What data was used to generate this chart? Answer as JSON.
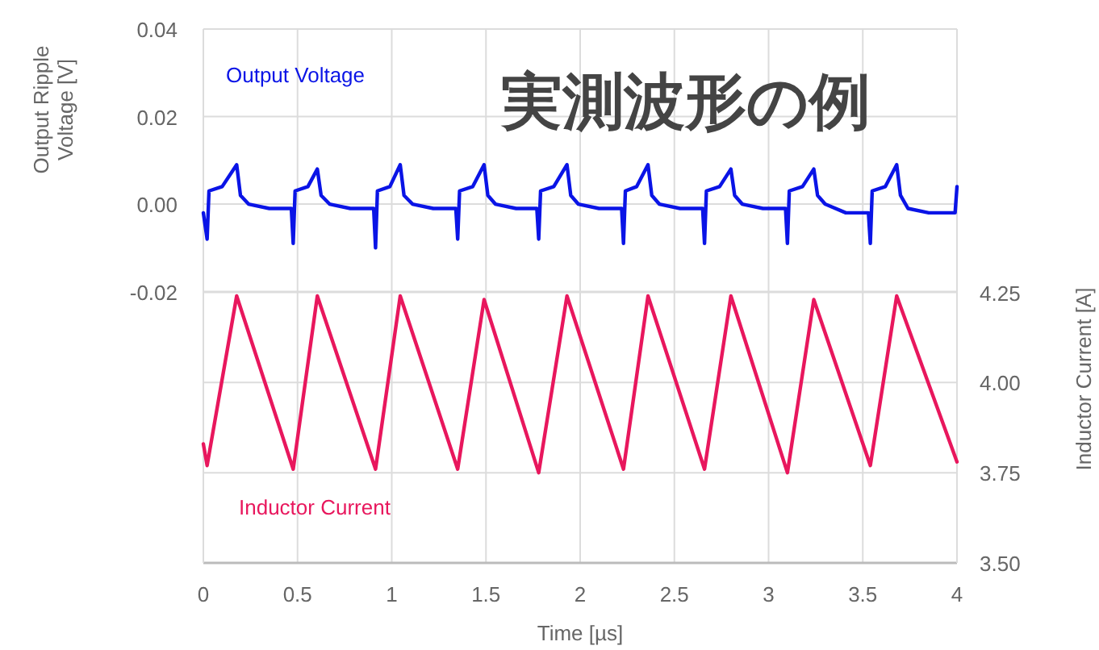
{
  "chart_data": {
    "type": "line",
    "title": "実測波形の例",
    "xlabel": "Time [µs]",
    "ylabel": "Output Ripple Voltage [V]",
    "y2label": "Inductor Current [A]",
    "xlim": [
      0,
      4
    ],
    "xticks": [
      0,
      0.5,
      1,
      1.5,
      2,
      2.5,
      3,
      3.5,
      4
    ],
    "ylim": [
      -0.082,
      0.04
    ],
    "yticks": [
      0.04,
      0.02,
      {
        "value": 0,
        "label": "0.00"
      },
      -0.02
    ],
    "y2lim": [
      3.5,
      4.98
    ],
    "y2ticks": [
      4.25,
      {
        "value": 4,
        "label": "4.00"
      },
      3.75,
      {
        "value": 3.5,
        "label": "3.50"
      }
    ],
    "grid": true,
    "series": [
      {
        "name": "Output Voltage",
        "color": "#0a14e6",
        "x": [
          0,
          0.02,
          0.03,
          0.1,
          0.177,
          0.197,
          0.24,
          0.35,
          0.467,
          0.477,
          0.487,
          0.555,
          0.605,
          0.625,
          0.67,
          0.78,
          0.904,
          0.914,
          0.924,
          0.99,
          1.045,
          1.065,
          1.11,
          1.22,
          1.34,
          1.35,
          1.36,
          1.43,
          1.49,
          1.51,
          1.55,
          1.66,
          1.77,
          1.78,
          1.79,
          1.86,
          1.93,
          1.95,
          1.99,
          2.1,
          2.22,
          2.23,
          2.24,
          2.3,
          2.36,
          2.38,
          2.42,
          2.53,
          2.65,
          2.66,
          2.67,
          2.74,
          2.8,
          2.82,
          2.86,
          2.97,
          3.09,
          3.1,
          3.11,
          3.18,
          3.24,
          3.26,
          3.3,
          3.41,
          3.53,
          3.54,
          3.55,
          3.62,
          3.68,
          3.7,
          3.74,
          3.85,
          3.99,
          4.0
        ],
        "values": [
          -0.002,
          -0.008,
          0.003,
          0.004,
          0.009,
          0.002,
          0.0,
          -0.001,
          -0.001,
          -0.009,
          0.003,
          0.004,
          0.008,
          0.002,
          0.0,
          -0.001,
          -0.001,
          -0.01,
          0.003,
          0.004,
          0.009,
          0.002,
          0.0,
          -0.001,
          -0.001,
          -0.008,
          0.003,
          0.004,
          0.009,
          0.002,
          0.0,
          -0.001,
          -0.001,
          -0.008,
          0.003,
          0.004,
          0.009,
          0.002,
          0.0,
          -0.001,
          -0.001,
          -0.009,
          0.003,
          0.004,
          0.009,
          0.002,
          0.0,
          -0.001,
          -0.001,
          -0.009,
          0.003,
          0.004,
          0.008,
          0.002,
          0.0,
          -0.001,
          -0.001,
          -0.009,
          0.003,
          0.004,
          0.008,
          0.002,
          0.0,
          -0.002,
          -0.002,
          -0.009,
          0.003,
          0.004,
          0.009,
          0.002,
          -0.001,
          -0.002,
          -0.002,
          0.004
        ]
      },
      {
        "name": "Inductor Current",
        "color": "#e8175d",
        "axis": "y2",
        "x": [
          0,
          0.02,
          0.177,
          0.477,
          0.605,
          0.914,
          1.045,
          1.35,
          1.49,
          1.78,
          1.93,
          2.23,
          2.36,
          2.66,
          2.8,
          3.1,
          3.24,
          3.54,
          3.68,
          4.0
        ],
        "values": [
          3.83,
          3.77,
          4.24,
          3.76,
          4.24,
          3.76,
          4.24,
          3.76,
          4.23,
          3.75,
          4.24,
          3.76,
          4.24,
          3.76,
          4.24,
          3.75,
          4.23,
          3.77,
          4.24,
          3.78
        ]
      }
    ]
  }
}
